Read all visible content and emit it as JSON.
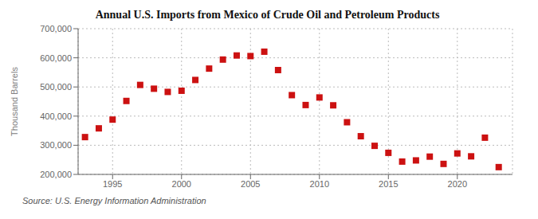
{
  "chart_data": {
    "type": "scatter",
    "title": "Annual U.S. Imports from Mexico of Crude Oil and Petroleum Products",
    "ylabel": "Thousand Barrels",
    "annotation": "Source: U.S. Energy Information Administration",
    "x": [
      1993,
      1994,
      1995,
      1996,
      1997,
      1998,
      1999,
      2000,
      2001,
      2002,
      2003,
      2004,
      2005,
      2006,
      2007,
      2008,
      2009,
      2010,
      2011,
      2012,
      2013,
      2014,
      2015,
      2016,
      2017,
      2018,
      2019,
      2020,
      2021,
      2022,
      2023
    ],
    "values": [
      328000,
      358000,
      388000,
      452000,
      507000,
      494000,
      483000,
      487000,
      524000,
      563000,
      594000,
      608000,
      606000,
      621000,
      558000,
      472000,
      438000,
      464000,
      437000,
      379000,
      331000,
      298000,
      274000,
      244000,
      248000,
      261000,
      236000,
      272000,
      262000,
      326000,
      225000
    ],
    "color": "#cc1111",
    "marker": "square",
    "xlim": [
      1992.5,
      2024
    ],
    "xticks": [
      1995,
      2000,
      2005,
      2010,
      2015,
      2020
    ],
    "ylim": [
      200000,
      700000
    ],
    "yticks": [
      {
        "value": 200000,
        "label": "200,000"
      },
      {
        "value": 300000,
        "label": "300,000"
      },
      {
        "value": 400000,
        "label": "400,000"
      },
      {
        "value": 500000,
        "label": "500,000"
      },
      {
        "value": 600000,
        "label": "600,000"
      },
      {
        "value": 700000,
        "label": "700,000"
      }
    ],
    "grid": true
  }
}
